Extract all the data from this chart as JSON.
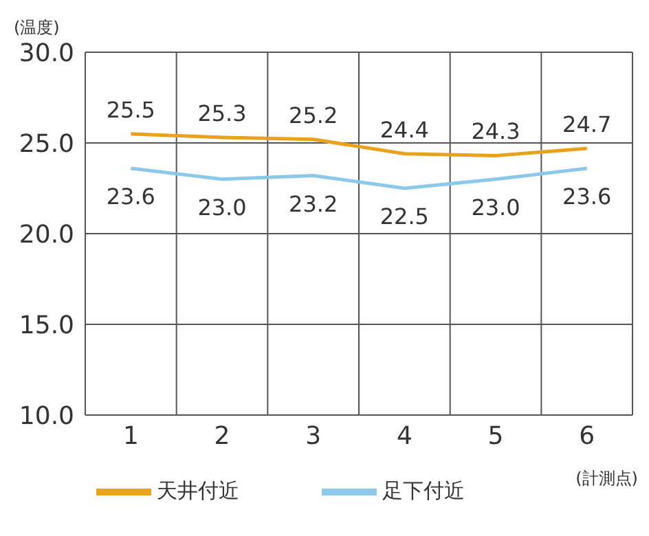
{
  "chart_data": {
    "type": "line",
    "ylabel": "(温度)",
    "xlabel": "(計測点)",
    "categories": [
      "1",
      "2",
      "3",
      "4",
      "5",
      "6"
    ],
    "series": [
      {
        "name": "天井付近",
        "color": "#e9a21c",
        "values": [
          25.5,
          25.3,
          25.2,
          24.4,
          24.3,
          24.7
        ],
        "value_labels": [
          "25.5",
          "25.3",
          "25.2",
          "24.4",
          "24.3",
          "24.7"
        ]
      },
      {
        "name": "足下付近",
        "color": "#8cc8ea",
        "values": [
          23.6,
          23.0,
          23.2,
          22.5,
          23.0,
          23.6
        ],
        "value_labels": [
          "23.6",
          "23.0",
          "23.2",
          "22.5",
          "23.0",
          "23.6"
        ]
      }
    ],
    "ylim": [
      10,
      30
    ],
    "yticks": [
      {
        "value": 10,
        "label": "10.0"
      },
      {
        "value": 15,
        "label": "15.0"
      },
      {
        "value": 20,
        "label": "20.0"
      },
      {
        "value": 25,
        "label": "25.0"
      },
      {
        "value": 30,
        "label": "30.0"
      }
    ],
    "grid": true,
    "legend": "bottom",
    "marker": "none",
    "line_style": "solid"
  }
}
